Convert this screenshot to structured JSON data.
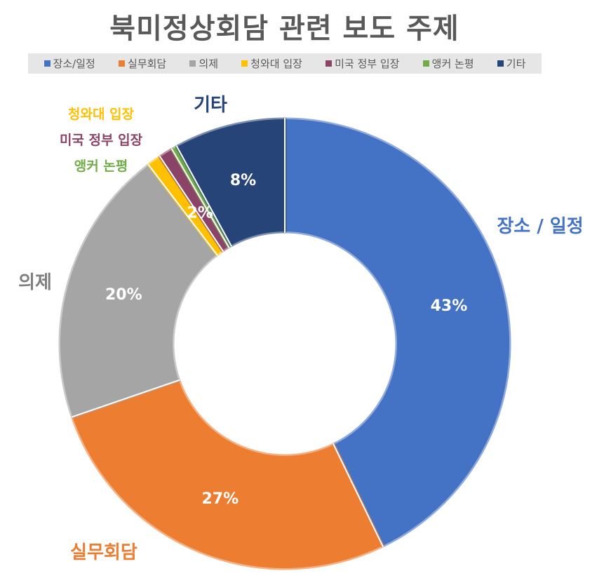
{
  "chart_data": {
    "type": "pie",
    "donut": true,
    "title": "북미정상회담 관련 보도 주제",
    "legend_position": "top",
    "slices": [
      {
        "label": "장소/일정",
        "outer_label": "장소 / 일정",
        "value": 43,
        "value_label": "43%",
        "color": "#4472C4",
        "label_color": "#4472C4"
      },
      {
        "label": "실무회담",
        "outer_label": "실무회담",
        "value": 27,
        "value_label": "27%",
        "color": "#ED7D31",
        "label_color": "#ED7D31"
      },
      {
        "label": "의제",
        "outer_label": "의제",
        "value": 20,
        "value_label": "20%",
        "color": "#A5A5A5",
        "label_color": "#7F7F7F"
      },
      {
        "label": "청와대 입장",
        "outer_label": "청와대 입장",
        "value": 1,
        "value_label": "",
        "color": "#FFC000",
        "label_color": "#FFC000"
      },
      {
        "label": "미국 정부 입장",
        "outer_label": "미국 정부 입장",
        "value": 1,
        "value_label": "",
        "color": "#8B4367",
        "label_color": "#8B4367"
      },
      {
        "label": "앵커 논평",
        "outer_label": "앵커 논평",
        "value": 0.4,
        "value_label": "",
        "color": "#70AD47",
        "label_color": "#70AD47"
      },
      {
        "label": "기타",
        "outer_label": "기타",
        "value": 8,
        "value_label": "8%",
        "color": "#264478",
        "label_color": "#264478"
      }
    ],
    "small_group_label": "2%"
  }
}
